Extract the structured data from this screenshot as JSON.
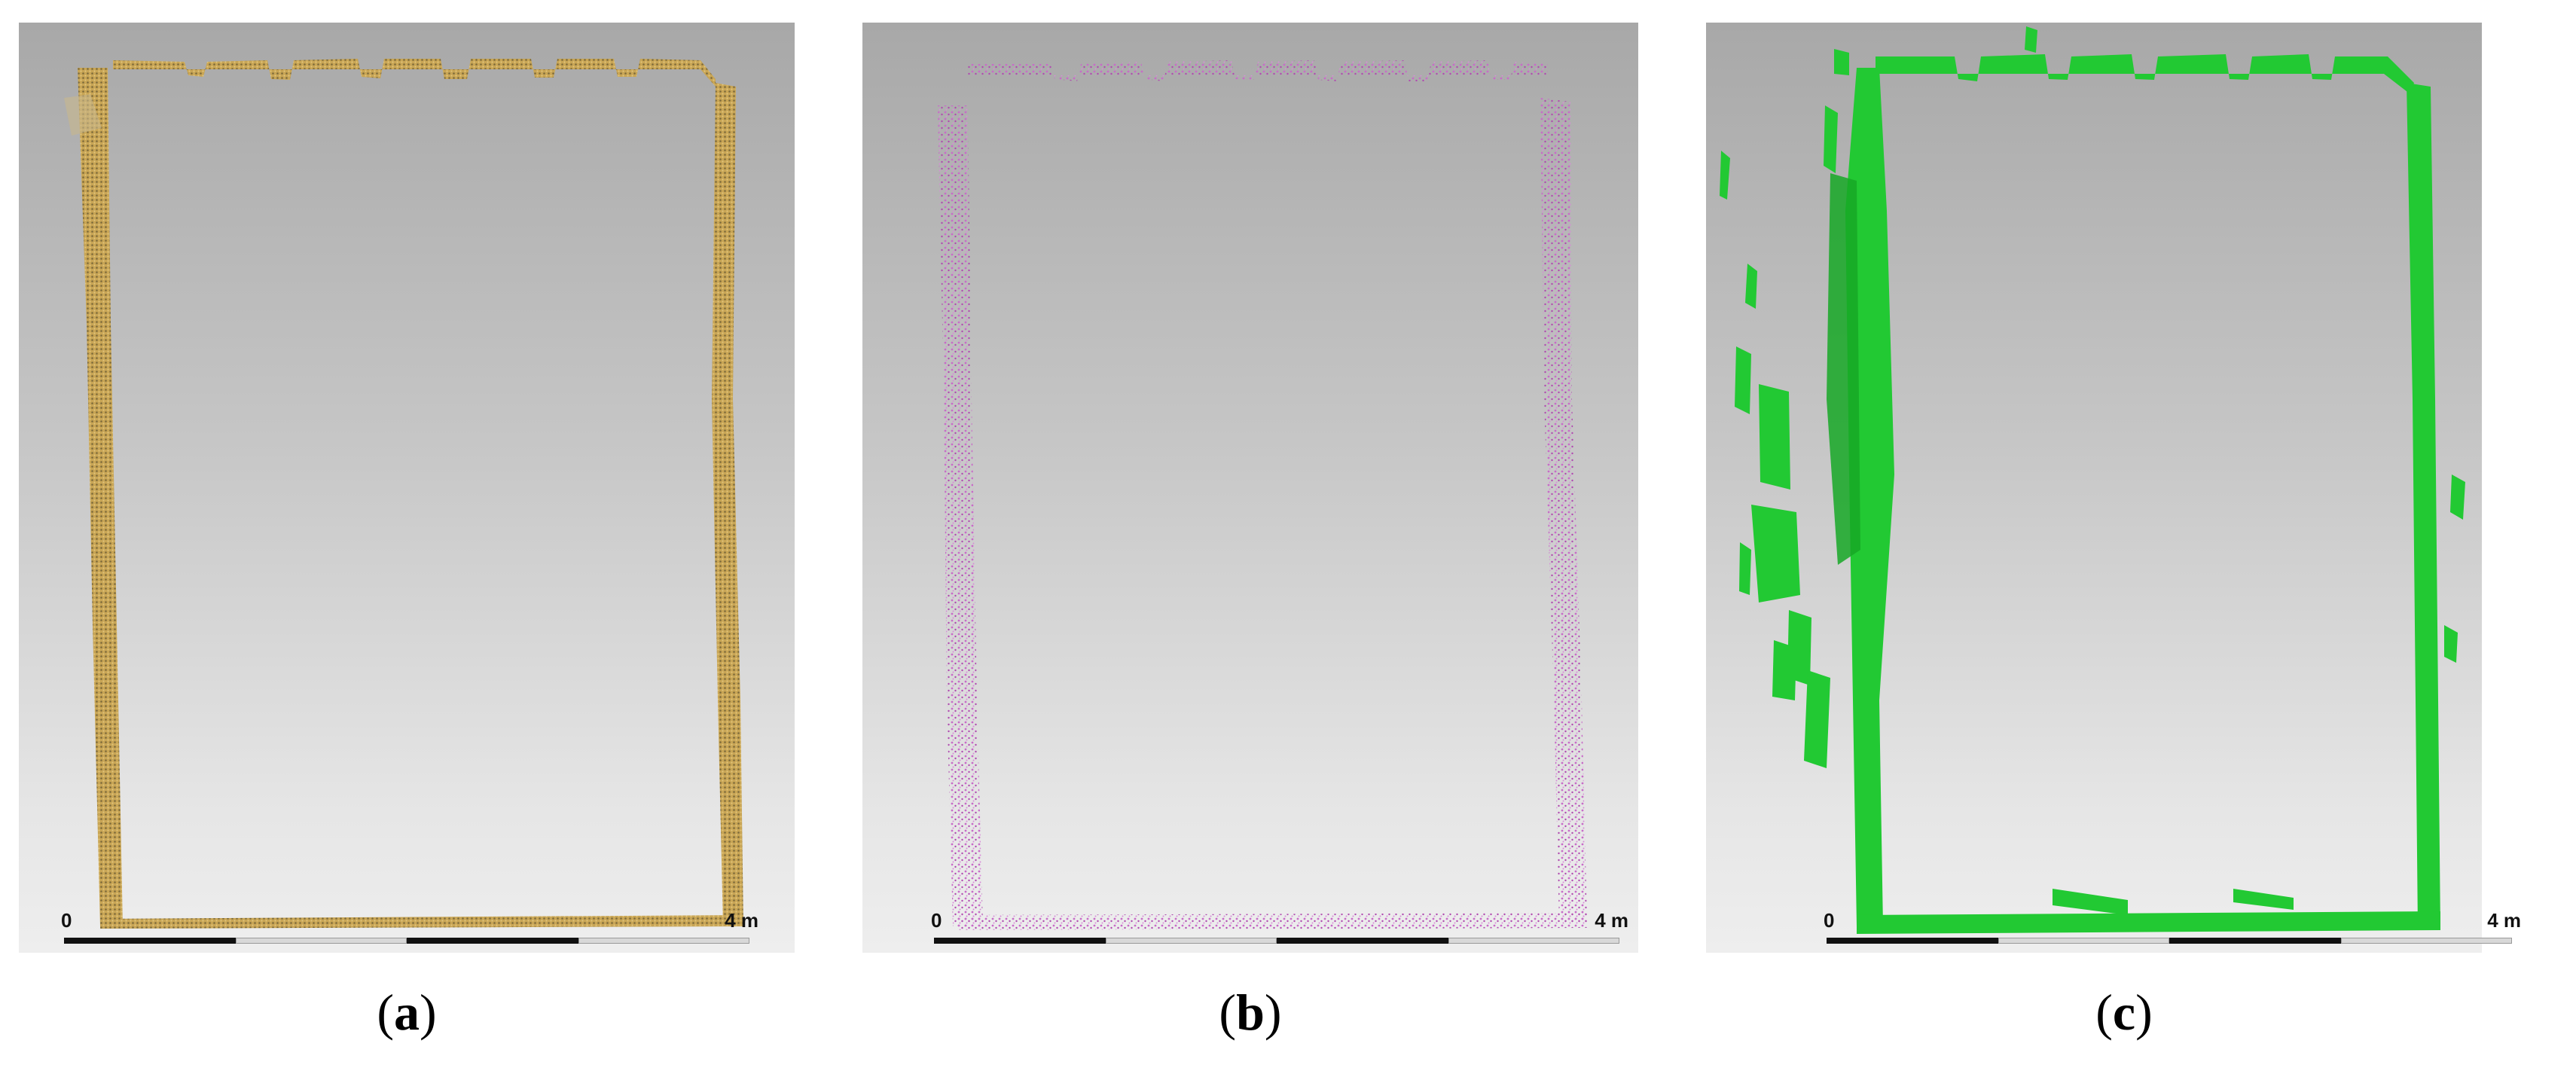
{
  "panels": [
    {
      "id": "a",
      "color": "#c8a555",
      "dark": "#8f7a45",
      "scale_start": "0",
      "scale_end": "4 m",
      "caption_letter": "a"
    },
    {
      "id": "b",
      "color": "#c86cc8",
      "dark": "#9a3a9a",
      "scale_start": "0",
      "scale_end": "4 m",
      "caption_letter": "b"
    },
    {
      "id": "c",
      "color": "#22c933",
      "dark": "#16a826",
      "scale_start": "0",
      "scale_end": "4 m",
      "caption_letter": "c"
    }
  ]
}
